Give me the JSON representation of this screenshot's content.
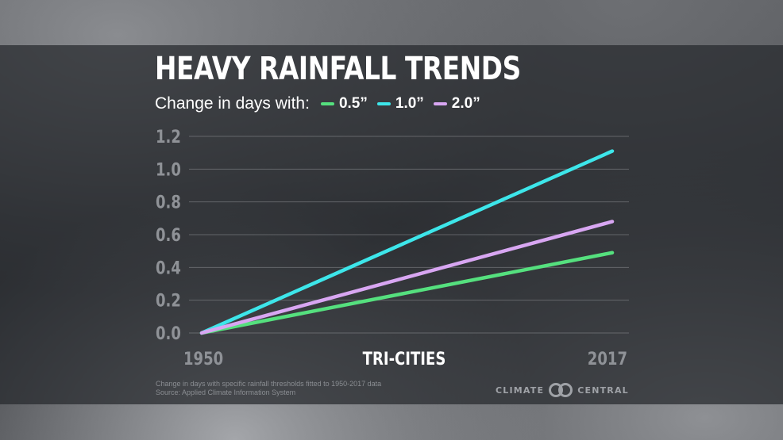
{
  "header": {
    "title": "HEAVY RAINFALL TRENDS",
    "subtitle": "Change in days with:"
  },
  "chart_data": {
    "type": "line",
    "x": [
      1950,
      2017
    ],
    "x_tick_labels": [
      "1950",
      "2017"
    ],
    "xlabel": "TRI-CITIES",
    "ylabel": "",
    "ylim": [
      0,
      1.2
    ],
    "y_ticks": [
      "0.0",
      "0.2",
      "0.4",
      "0.6",
      "0.8",
      "1.0",
      "1.2"
    ],
    "grid": true,
    "legend_position": "top-left",
    "series": [
      {
        "name": "0.5”",
        "color": "#55e07e",
        "values": [
          0.0,
          0.49
        ]
      },
      {
        "name": "1.0”",
        "color": "#3de6ea",
        "values": [
          0.0,
          1.11
        ]
      },
      {
        "name": "2.0”",
        "color": "#d8a6f2",
        "values": [
          0.0,
          0.68
        ]
      }
    ]
  },
  "footnote": {
    "line1": "Change in days with specific rainfall thresholds fitted to 1950-2017 data",
    "line2": "Source: Applied Climate Information System"
  },
  "logo": {
    "left": "CLIMATE",
    "right": "CENTRAL"
  }
}
